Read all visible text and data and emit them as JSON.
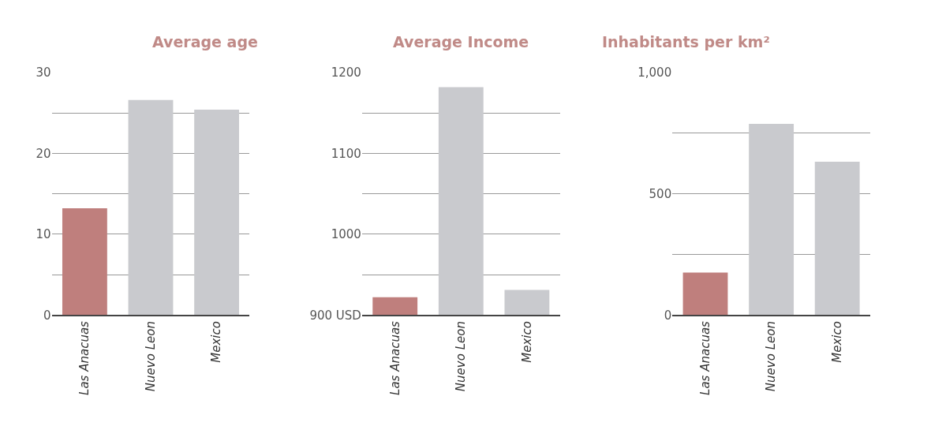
{
  "chart_data": [
    {
      "type": "bar",
      "title": "Average age",
      "categories": [
        "Las Anacuas",
        "Nuevo Leon",
        "Mexico"
      ],
      "values": [
        13.2,
        26.6,
        25.4
      ],
      "colors": [
        "#bf7f7d",
        "#c9cace",
        "#c9cace"
      ],
      "ylim": [
        0,
        30
      ],
      "yticks": [
        0,
        {
          "value": 5,
          "label": null
        },
        10,
        {
          "value": 15,
          "label": null
        },
        20,
        {
          "value": 25,
          "label": null
        },
        30
      ],
      "grid": "y"
    },
    {
      "type": "bar",
      "title": "Average Income",
      "categories": [
        "Las Anacuas",
        "Nuevo Leon",
        "Mexico"
      ],
      "values": [
        922,
        1182,
        931
      ],
      "colors": [
        "#bf7f7d",
        "#c9cace",
        "#c9cace"
      ],
      "ylim": [
        900,
        1200
      ],
      "yticks": [
        {
          "value": 900,
          "label": "900 USD"
        },
        {
          "value": 950,
          "label": null
        },
        1000,
        {
          "value": 1050,
          "label": null
        },
        1100,
        {
          "value": 1150,
          "label": null
        },
        1200
      ],
      "grid": "y"
    },
    {
      "type": "bar",
      "title": "Inhabitants per km²",
      "categories": [
        "Las Anacuas",
        "Nuevo Leon",
        "Mexico"
      ],
      "values": [
        175,
        788,
        632
      ],
      "colors": [
        "#bf7f7d",
        "#c9cace",
        "#c9cace"
      ],
      "ylim": [
        0,
        1000
      ],
      "yticks": [
        0,
        {
          "value": 250,
          "label": null
        },
        500,
        {
          "value": 750,
          "label": null
        },
        {
          "value": 1000,
          "label": "1,000"
        }
      ],
      "grid": "y"
    }
  ]
}
